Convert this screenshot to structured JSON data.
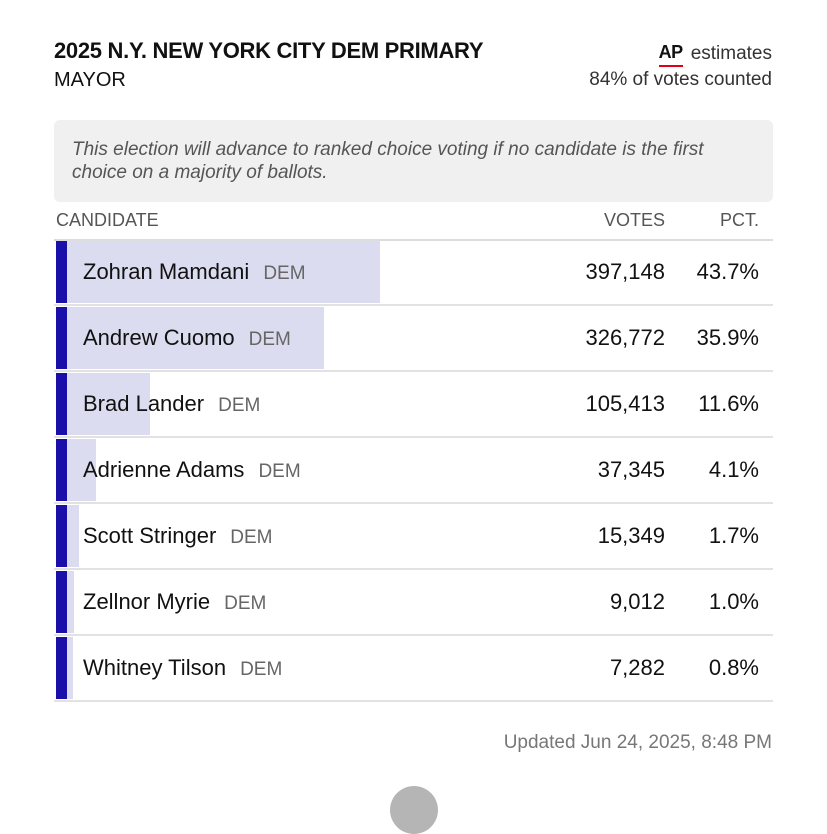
{
  "header": {
    "title": "2025 N.Y. NEW YORK CITY DEM PRIMARY",
    "subtitle": "MAYOR",
    "ap_logo": "AP",
    "ap_estimates": "estimates",
    "votes_counted": "84% of votes counted"
  },
  "note": "This election will advance to ranked choice voting if no candidate is the first choice on a majority of ballots.",
  "table": {
    "headers": {
      "candidate": "CANDIDATE",
      "votes": "VOTES",
      "pct": "PCT."
    },
    "rows": [
      {
        "name": "Zohran Mamdani",
        "party": "DEM",
        "votes": "397,148",
        "pct": "43.7%",
        "share": 0.437
      },
      {
        "name": "Andrew Cuomo",
        "party": "DEM",
        "votes": "326,772",
        "pct": "35.9%",
        "share": 0.359
      },
      {
        "name": "Brad Lander",
        "party": "DEM",
        "votes": "105,413",
        "pct": "11.6%",
        "share": 0.116
      },
      {
        "name": "Adrienne Adams",
        "party": "DEM",
        "votes": "37,345",
        "pct": "4.1%",
        "share": 0.041
      },
      {
        "name": "Scott Stringer",
        "party": "DEM",
        "votes": "15,349",
        "pct": "1.7%",
        "share": 0.017
      },
      {
        "name": "Zellnor Myrie",
        "party": "DEM",
        "votes": "9,012",
        "pct": "1.0%",
        "share": 0.01
      },
      {
        "name": "Whitney Tilson",
        "party": "DEM",
        "votes": "7,282",
        "pct": "0.8%",
        "share": 0.008
      }
    ]
  },
  "updated": "Updated  Jun 24, 2025, 8:48 PM",
  "colors": {
    "dem_stripe": "#1a0fa8",
    "bar_fill": "#dcdcf0",
    "ap_underline": "#e0001b"
  }
}
